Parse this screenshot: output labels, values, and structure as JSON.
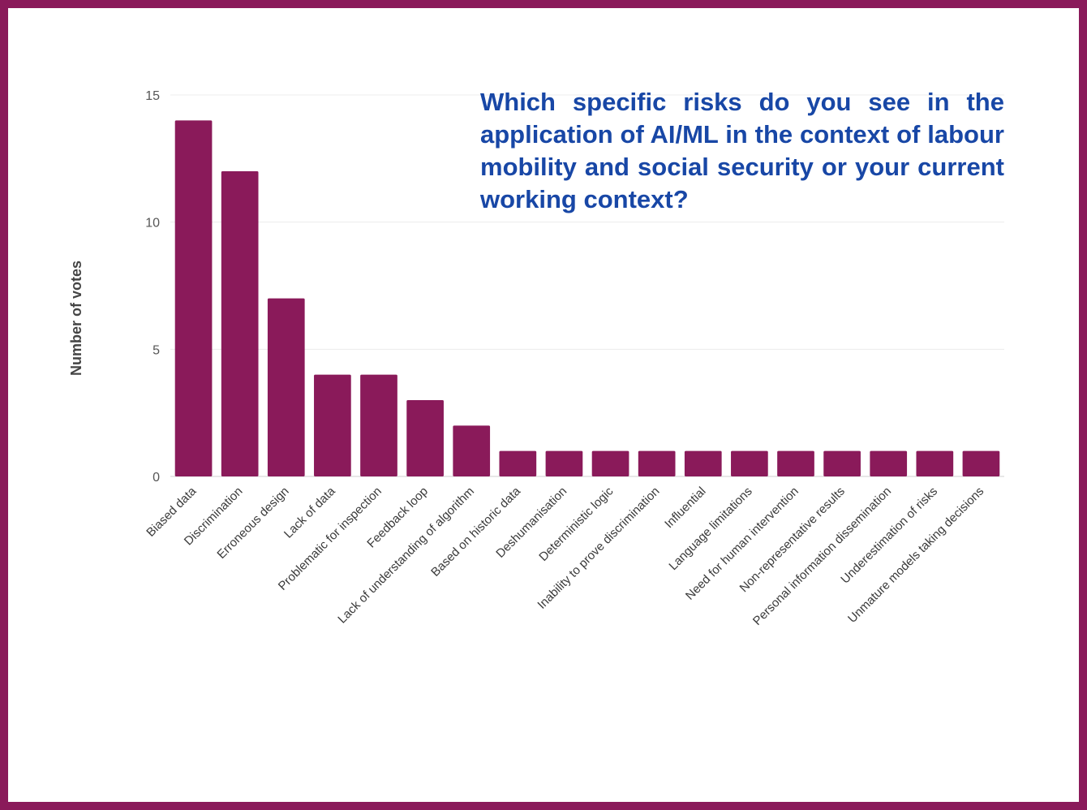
{
  "chart_data": {
    "type": "bar",
    "title": "Which specific risks do you see in the application of AI/ML in the context of labour mobility and social security or your current working context?",
    "xlabel": "",
    "ylabel": "Number of votes",
    "ylim": [
      0,
      15
    ],
    "yticks": [
      0,
      5,
      10,
      15
    ],
    "grid": true,
    "legend": "none",
    "bar_color": "#8a1a5a",
    "title_color": "#1847a6",
    "categories": [
      "Biased data",
      "Discrimination",
      "Erroneous design",
      "Lack of data",
      "Problematic for inspection",
      "Feedback loop",
      "Lack of understanding of algorithm",
      "Based on historic data",
      "Deshumanisation",
      "Deterministic logic",
      "Inability to prove discrimination",
      "Influential",
      "Language limitations",
      "Need for human intervention",
      "Non-representative results",
      "Personal information dissemination",
      "Underestimation of risks",
      "Unmature models taking decisions"
    ],
    "values": [
      14,
      12,
      7,
      4,
      4,
      3,
      2,
      1,
      1,
      1,
      1,
      1,
      1,
      1,
      1,
      1,
      1,
      1
    ]
  }
}
